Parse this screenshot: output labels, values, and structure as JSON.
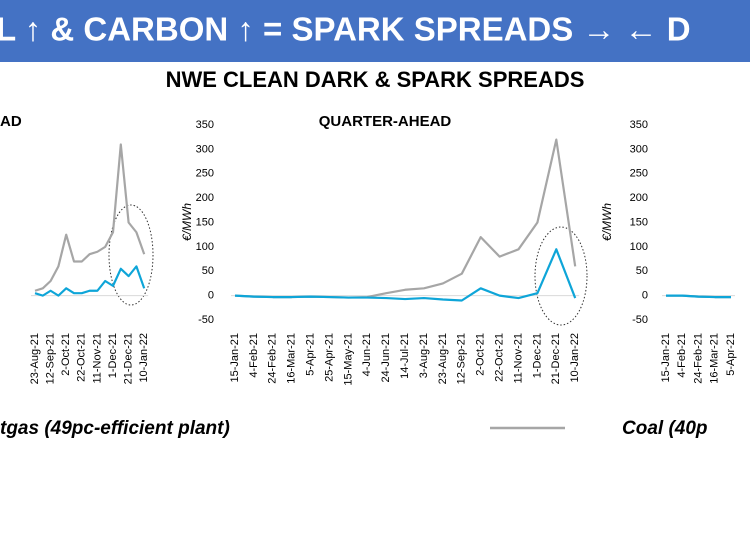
{
  "banner": "L ↑ & CARBON ↑ = SPARK SPREADS → ← D",
  "title": "NWE CLEAN DARK & SPARK SPREADS",
  "chart_data": [
    {
      "type": "line",
      "title": "AD",
      "categories": [
        "23-Aug-21",
        null,
        "12-Sep-21",
        null,
        "2-Oct-21",
        null,
        "22-Oct-21",
        null,
        "11-Nov-21",
        null,
        "1-Dec-21",
        null,
        "21-Dec-21",
        null,
        "10-Jan-22"
      ],
      "series": [
        {
          "color": "#0ea5d8",
          "values": [
            5,
            0,
            10,
            0,
            15,
            5,
            5,
            10,
            10,
            30,
            20,
            55,
            40,
            60,
            15
          ]
        },
        {
          "color": "#a6a6a6",
          "values": [
            10,
            15,
            30,
            60,
            125,
            70,
            70,
            85,
            90,
            100,
            130,
            310,
            150,
            130,
            85
          ]
        }
      ],
      "ylim": [
        -50,
        350
      ]
    },
    {
      "type": "line",
      "title": "QUARTER-AHEAD",
      "ylabel": "€/MWh",
      "categories": [
        "15-Jan-21",
        "4-Feb-21",
        "24-Feb-21",
        "16-Mar-21",
        "5-Apr-21",
        "25-Apr-21",
        "15-May-21",
        "4-Jun-21",
        "24-Jun-21",
        "14-Jul-21",
        "3-Aug-21",
        "23-Aug-21",
        "12-Sep-21",
        "2-Oct-21",
        "22-Oct-21",
        "11-Nov-21",
        "1-Dec-21",
        "21-Dec-21",
        "10-Jan-22"
      ],
      "series": [
        {
          "name": "tgas (49pc-efficient plant)",
          "color": "#0ea5d8",
          "values": [
            0,
            -2,
            -3,
            -3,
            -2,
            -3,
            -4,
            -4,
            -5,
            -7,
            -5,
            -8,
            -10,
            15,
            0,
            -5,
            5,
            95,
            -5
          ]
        },
        {
          "name": "Coal (40p",
          "color": "#a6a6a6",
          "values": [
            0,
            -2,
            -3,
            -3,
            -2,
            -3,
            -4,
            -3,
            5,
            12,
            15,
            25,
            45,
            120,
            80,
            95,
            150,
            320,
            60
          ]
        }
      ],
      "ylim": [
        -50,
        350
      ],
      "yticks": [
        -50,
        0,
        50,
        100,
        150,
        200,
        250,
        300,
        350
      ]
    },
    {
      "type": "line",
      "ylabel": "€/MWh",
      "categories": [
        "15-Jan-21",
        "4-Feb-21",
        "24-Feb-21",
        "16-Mar-21",
        "5-Apr-21"
      ],
      "series": [
        {
          "color": "#0ea5d8",
          "values": [
            0,
            0,
            -2,
            -3,
            -3
          ]
        },
        {
          "color": "#a6a6a6",
          "values": [
            0,
            0,
            -2,
            -3,
            -3
          ]
        }
      ],
      "ylim": [
        -50,
        350
      ],
      "yticks": [
        -50,
        0,
        50,
        100,
        150,
        200,
        250,
        300,
        350
      ]
    }
  ]
}
